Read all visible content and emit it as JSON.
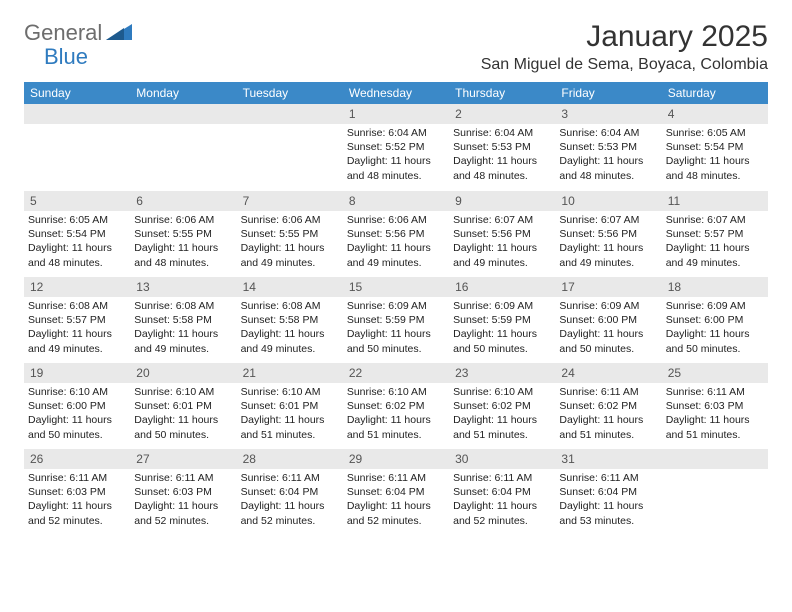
{
  "logo": {
    "text1": "General",
    "text2": "Blue"
  },
  "title": "January 2025",
  "location": "San Miguel de Sema, Boyaca, Colombia",
  "colors": {
    "header_bg": "#3b89c8",
    "header_text": "#ffffff",
    "daynum_bg": "#e9e9e9",
    "daynum_text": "#555555",
    "body_text": "#222222",
    "logo_gray": "#6d6d6d",
    "logo_blue": "#2f7bbf",
    "title_color": "#333333",
    "page_bg": "#ffffff"
  },
  "typography": {
    "font_family": "Arial",
    "title_fontsize": 30,
    "location_fontsize": 16,
    "dayheader_fontsize": 12,
    "daynum_fontsize": 12,
    "body_fontsize": 10.5
  },
  "dayHeaders": [
    "Sunday",
    "Monday",
    "Tuesday",
    "Wednesday",
    "Thursday",
    "Friday",
    "Saturday"
  ],
  "weeks": [
    [
      {
        "empty": true
      },
      {
        "empty": true
      },
      {
        "empty": true
      },
      {
        "day": "1",
        "sunrise": "Sunrise: 6:04 AM",
        "sunset": "Sunset: 5:52 PM",
        "daylight": "Daylight: 11 hours and 48 minutes."
      },
      {
        "day": "2",
        "sunrise": "Sunrise: 6:04 AM",
        "sunset": "Sunset: 5:53 PM",
        "daylight": "Daylight: 11 hours and 48 minutes."
      },
      {
        "day": "3",
        "sunrise": "Sunrise: 6:04 AM",
        "sunset": "Sunset: 5:53 PM",
        "daylight": "Daylight: 11 hours and 48 minutes."
      },
      {
        "day": "4",
        "sunrise": "Sunrise: 6:05 AM",
        "sunset": "Sunset: 5:54 PM",
        "daylight": "Daylight: 11 hours and 48 minutes."
      }
    ],
    [
      {
        "day": "5",
        "sunrise": "Sunrise: 6:05 AM",
        "sunset": "Sunset: 5:54 PM",
        "daylight": "Daylight: 11 hours and 48 minutes."
      },
      {
        "day": "6",
        "sunrise": "Sunrise: 6:06 AM",
        "sunset": "Sunset: 5:55 PM",
        "daylight": "Daylight: 11 hours and 48 minutes."
      },
      {
        "day": "7",
        "sunrise": "Sunrise: 6:06 AM",
        "sunset": "Sunset: 5:55 PM",
        "daylight": "Daylight: 11 hours and 49 minutes."
      },
      {
        "day": "8",
        "sunrise": "Sunrise: 6:06 AM",
        "sunset": "Sunset: 5:56 PM",
        "daylight": "Daylight: 11 hours and 49 minutes."
      },
      {
        "day": "9",
        "sunrise": "Sunrise: 6:07 AM",
        "sunset": "Sunset: 5:56 PM",
        "daylight": "Daylight: 11 hours and 49 minutes."
      },
      {
        "day": "10",
        "sunrise": "Sunrise: 6:07 AM",
        "sunset": "Sunset: 5:56 PM",
        "daylight": "Daylight: 11 hours and 49 minutes."
      },
      {
        "day": "11",
        "sunrise": "Sunrise: 6:07 AM",
        "sunset": "Sunset: 5:57 PM",
        "daylight": "Daylight: 11 hours and 49 minutes."
      }
    ],
    [
      {
        "day": "12",
        "sunrise": "Sunrise: 6:08 AM",
        "sunset": "Sunset: 5:57 PM",
        "daylight": "Daylight: 11 hours and 49 minutes."
      },
      {
        "day": "13",
        "sunrise": "Sunrise: 6:08 AM",
        "sunset": "Sunset: 5:58 PM",
        "daylight": "Daylight: 11 hours and 49 minutes."
      },
      {
        "day": "14",
        "sunrise": "Sunrise: 6:08 AM",
        "sunset": "Sunset: 5:58 PM",
        "daylight": "Daylight: 11 hours and 49 minutes."
      },
      {
        "day": "15",
        "sunrise": "Sunrise: 6:09 AM",
        "sunset": "Sunset: 5:59 PM",
        "daylight": "Daylight: 11 hours and 50 minutes."
      },
      {
        "day": "16",
        "sunrise": "Sunrise: 6:09 AM",
        "sunset": "Sunset: 5:59 PM",
        "daylight": "Daylight: 11 hours and 50 minutes."
      },
      {
        "day": "17",
        "sunrise": "Sunrise: 6:09 AM",
        "sunset": "Sunset: 6:00 PM",
        "daylight": "Daylight: 11 hours and 50 minutes."
      },
      {
        "day": "18",
        "sunrise": "Sunrise: 6:09 AM",
        "sunset": "Sunset: 6:00 PM",
        "daylight": "Daylight: 11 hours and 50 minutes."
      }
    ],
    [
      {
        "day": "19",
        "sunrise": "Sunrise: 6:10 AM",
        "sunset": "Sunset: 6:00 PM",
        "daylight": "Daylight: 11 hours and 50 minutes."
      },
      {
        "day": "20",
        "sunrise": "Sunrise: 6:10 AM",
        "sunset": "Sunset: 6:01 PM",
        "daylight": "Daylight: 11 hours and 50 minutes."
      },
      {
        "day": "21",
        "sunrise": "Sunrise: 6:10 AM",
        "sunset": "Sunset: 6:01 PM",
        "daylight": "Daylight: 11 hours and 51 minutes."
      },
      {
        "day": "22",
        "sunrise": "Sunrise: 6:10 AM",
        "sunset": "Sunset: 6:02 PM",
        "daylight": "Daylight: 11 hours and 51 minutes."
      },
      {
        "day": "23",
        "sunrise": "Sunrise: 6:10 AM",
        "sunset": "Sunset: 6:02 PM",
        "daylight": "Daylight: 11 hours and 51 minutes."
      },
      {
        "day": "24",
        "sunrise": "Sunrise: 6:11 AM",
        "sunset": "Sunset: 6:02 PM",
        "daylight": "Daylight: 11 hours and 51 minutes."
      },
      {
        "day": "25",
        "sunrise": "Sunrise: 6:11 AM",
        "sunset": "Sunset: 6:03 PM",
        "daylight": "Daylight: 11 hours and 51 minutes."
      }
    ],
    [
      {
        "day": "26",
        "sunrise": "Sunrise: 6:11 AM",
        "sunset": "Sunset: 6:03 PM",
        "daylight": "Daylight: 11 hours and 52 minutes."
      },
      {
        "day": "27",
        "sunrise": "Sunrise: 6:11 AM",
        "sunset": "Sunset: 6:03 PM",
        "daylight": "Daylight: 11 hours and 52 minutes."
      },
      {
        "day": "28",
        "sunrise": "Sunrise: 6:11 AM",
        "sunset": "Sunset: 6:04 PM",
        "daylight": "Daylight: 11 hours and 52 minutes."
      },
      {
        "day": "29",
        "sunrise": "Sunrise: 6:11 AM",
        "sunset": "Sunset: 6:04 PM",
        "daylight": "Daylight: 11 hours and 52 minutes."
      },
      {
        "day": "30",
        "sunrise": "Sunrise: 6:11 AM",
        "sunset": "Sunset: 6:04 PM",
        "daylight": "Daylight: 11 hours and 52 minutes."
      },
      {
        "day": "31",
        "sunrise": "Sunrise: 6:11 AM",
        "sunset": "Sunset: 6:04 PM",
        "daylight": "Daylight: 11 hours and 53 minutes."
      },
      {
        "empty": true
      }
    ]
  ]
}
